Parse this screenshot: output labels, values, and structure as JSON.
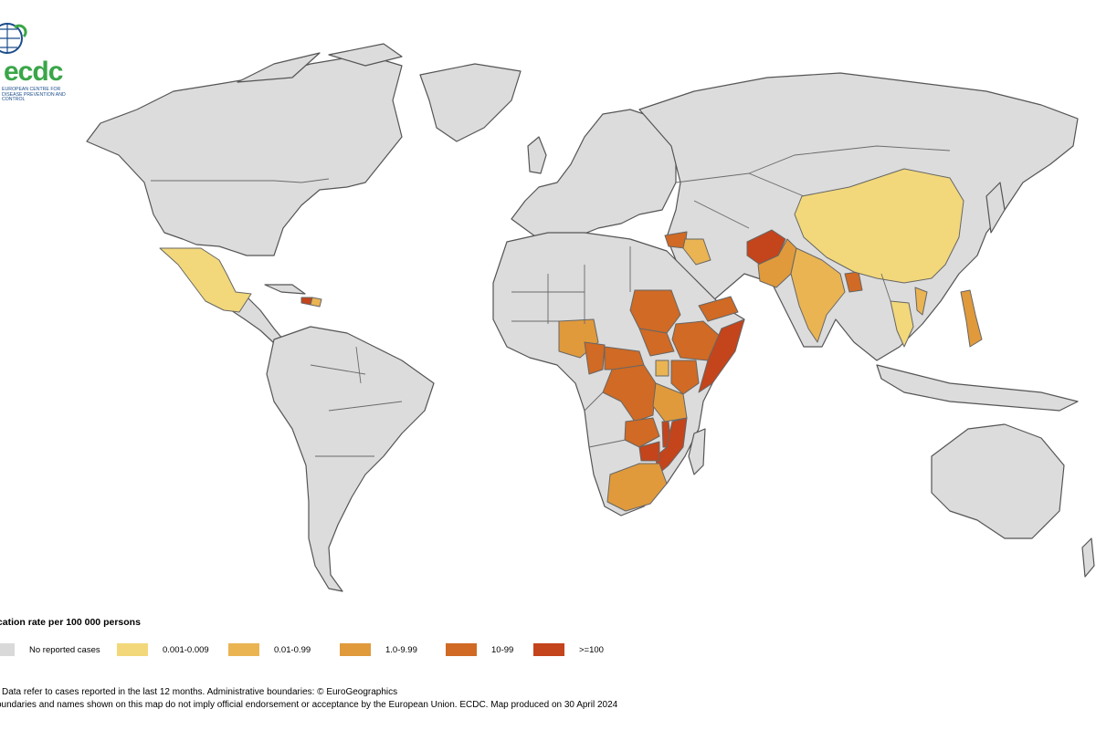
{
  "logo": {
    "word": "ecdc",
    "sub": "EUROPEAN CENTRE FOR DISEASE PREVENTION AND CONTROL"
  },
  "legend": {
    "title": "ication rate per 100 000 persons",
    "items": [
      {
        "label": "No reported cases",
        "color": "#d9d9d9"
      },
      {
        "label": "0.001-0.009",
        "color": "#f2d87a"
      },
      {
        "label": "0.01-0.99",
        "color": "#eab453"
      },
      {
        "label": "1.0-9.99",
        "color": "#e09a3c"
      },
      {
        "label": "10-99",
        "color": "#d06a24"
      },
      {
        "label": ">=100",
        "color": "#c4441b"
      }
    ]
  },
  "map": {
    "regions": [
      {
        "name": "Mexico",
        "class": "0.001-0.009"
      },
      {
        "name": "Haiti",
        "class": ">=100"
      },
      {
        "name": "Dominican Republic",
        "class": "0.01-0.99"
      },
      {
        "name": "Syria",
        "class": "10-99"
      },
      {
        "name": "Iraq",
        "class": "0.01-0.99"
      },
      {
        "name": "Afghanistan",
        "class": ">=100"
      },
      {
        "name": "Pakistan",
        "class": "1.0-9.99"
      },
      {
        "name": "India",
        "class": "0.01-0.99"
      },
      {
        "name": "Bangladesh",
        "class": "10-99"
      },
      {
        "name": "China",
        "class": "0.001-0.009"
      },
      {
        "name": "Thailand",
        "class": "0.001-0.009"
      },
      {
        "name": "Vietnam",
        "class": "0.01-0.99"
      },
      {
        "name": "Philippines",
        "class": "1.0-9.99"
      },
      {
        "name": "Sudan",
        "class": "10-99"
      },
      {
        "name": "South Sudan",
        "class": "10-99"
      },
      {
        "name": "Ethiopia",
        "class": "10-99"
      },
      {
        "name": "Somalia",
        "class": ">=100"
      },
      {
        "name": "Yemen",
        "class": "10-99"
      },
      {
        "name": "Nigeria",
        "class": "1.0-9.99"
      },
      {
        "name": "Cameroon",
        "class": "10-99"
      },
      {
        "name": "Central African Republic",
        "class": "10-99"
      },
      {
        "name": "DR Congo",
        "class": "10-99"
      },
      {
        "name": "Uganda",
        "class": "0.01-0.99"
      },
      {
        "name": "Kenya",
        "class": "10-99"
      },
      {
        "name": "Tanzania",
        "class": "1.0-9.99"
      },
      {
        "name": "Zambia",
        "class": "10-99"
      },
      {
        "name": "Malawi",
        "class": ">=100"
      },
      {
        "name": "Mozambique",
        "class": ">=100"
      },
      {
        "name": "Zimbabwe",
        "class": ">=100"
      },
      {
        "name": "South Africa",
        "class": "1.0-9.99"
      }
    ]
  },
  "notes": {
    "line1": "Data refer to cases reported in the last 12 months. Administrative boundaries: © EuroGeographics",
    "line2": "oundaries and names shown on this map do not imply official endorsement or acceptance by the European Union. ECDC. Map produced on 30 April 2024"
  }
}
